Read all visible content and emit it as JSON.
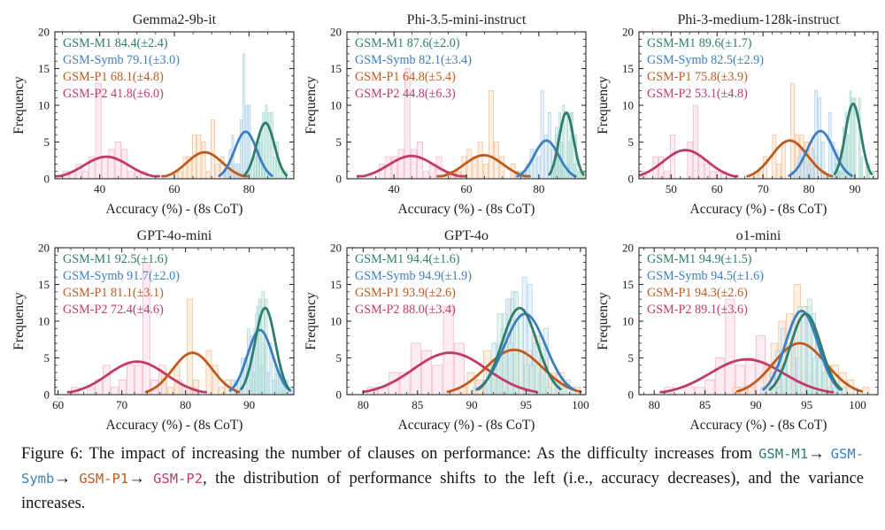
{
  "page": {
    "background": "#ffffff"
  },
  "colors": {
    "m1": {
      "line": "#2e7d6e",
      "fill": "#d8f0ea",
      "edge": "#9fd6c9"
    },
    "symb": {
      "line": "#3c7fc0",
      "fill": "#d8e9f7",
      "edge": "#a5cdea"
    },
    "p1": {
      "line": "#bf5a1d",
      "fill": "#fbe3cb",
      "edge": "#f0bd92"
    },
    "p2": {
      "line": "#c23a68",
      "fill": "#fcdde8",
      "edge": "#f3b3c9"
    }
  },
  "axis": {
    "ylabel": "Frequency",
    "xlabel": "Accuracy (%) - (8s CoT)",
    "ylim": [
      0,
      20
    ],
    "yticks": [
      0,
      5,
      10,
      15,
      20
    ],
    "yminor_step": 1,
    "grid": false,
    "legend_position": "upper-left-inside"
  },
  "chart_data": [
    {
      "type": "histogram+kde",
      "title": "Gemma2-9b-it",
      "xlim": [
        28,
        92
      ],
      "xticks": [
        40,
        60,
        80
      ],
      "xminor_step": 5,
      "series": [
        {
          "key": "p2",
          "label": "GSM-P2",
          "legend": "GSM-P2 41.8(±6.0)",
          "mean": 41.8,
          "std": 6.0,
          "curve_peak": 3.0,
          "hist_peak": 13
        },
        {
          "key": "p1",
          "label": "GSM-P1",
          "legend": "GSM-P1 68.1(±4.8)",
          "mean": 68.1,
          "std": 4.8,
          "curve_peak": 3.6,
          "hist_peak": 8
        },
        {
          "key": "symb",
          "label": "GSM-Symb",
          "legend": "GSM-Symb 79.1(±3.0)",
          "mean": 79.1,
          "std": 3.0,
          "curve_peak": 6.4,
          "hist_peak": 17
        },
        {
          "key": "m1",
          "label": "GSM-M1",
          "legend": "GSM-M1 84.4(±2.4)",
          "mean": 84.4,
          "std": 2.4,
          "curve_peak": 7.6,
          "hist_peak": 10
        }
      ]
    },
    {
      "type": "histogram+kde",
      "title": "Phi-3.5-mini-instruct",
      "xlim": [
        27,
        93
      ],
      "xticks": [
        40,
        60,
        80
      ],
      "xminor_step": 5,
      "series": [
        {
          "key": "p2",
          "label": "GSM-P2",
          "legend": "GSM-P2 44.8(±6.3)",
          "mean": 44.8,
          "std": 6.3,
          "curve_peak": 3.1,
          "hist_peak": 15
        },
        {
          "key": "p1",
          "label": "GSM-P1",
          "legend": "GSM-P1 64.8(±5.4)",
          "mean": 64.8,
          "std": 5.4,
          "curve_peak": 3.2,
          "hist_peak": 12
        },
        {
          "key": "symb",
          "label": "GSM-Symb",
          "legend": "GSM-Symb 82.1(±3.4)",
          "mean": 82.1,
          "std": 3.4,
          "curve_peak": 5.2,
          "hist_peak": 12
        },
        {
          "key": "m1",
          "label": "GSM-M1",
          "legend": "GSM-M1 87.6(±2.0)",
          "mean": 87.6,
          "std": 2.0,
          "curve_peak": 9.0,
          "hist_peak": 10
        }
      ]
    },
    {
      "type": "histogram+kde",
      "title": "Phi-3-medium-128k-instruct",
      "xlim": [
        43,
        95
      ],
      "xticks": [
        50,
        60,
        70,
        80,
        90
      ],
      "xminor_step": 2,
      "series": [
        {
          "key": "p2",
          "label": "GSM-P2",
          "legend": "GSM-P2 53.1(±4.8)",
          "mean": 53.1,
          "std": 4.8,
          "curve_peak": 3.9,
          "hist_peak": 10
        },
        {
          "key": "p1",
          "label": "GSM-P1",
          "legend": "GSM-P1 75.8(±3.9)",
          "mean": 75.8,
          "std": 3.9,
          "curve_peak": 5.2,
          "hist_peak": 13
        },
        {
          "key": "symb",
          "label": "GSM-Symb",
          "legend": "GSM-Symb 82.5(±2.9)",
          "mean": 82.5,
          "std": 2.9,
          "curve_peak": 6.5,
          "hist_peak": 12
        },
        {
          "key": "m1",
          "label": "GSM-M1",
          "legend": "GSM-M1 89.6(±1.7)",
          "mean": 89.6,
          "std": 1.7,
          "curve_peak": 10.2,
          "hist_peak": 12
        }
      ]
    },
    {
      "type": "histogram+kde",
      "title": "GPT-4o-mini",
      "xlim": [
        59.5,
        97
      ],
      "xticks": [
        60,
        70,
        80,
        90
      ],
      "xminor_step": 2,
      "series": [
        {
          "key": "p2",
          "label": "GSM-P2",
          "legend": "GSM-P2 72.4(±4.6)",
          "mean": 72.4,
          "std": 4.6,
          "curve_peak": 4.5,
          "hist_peak": 18
        },
        {
          "key": "p1",
          "label": "GSM-P1",
          "legend": "GSM-P1 81.1(±3.1)",
          "mean": 81.1,
          "std": 3.1,
          "curve_peak": 5.7,
          "hist_peak": 13
        },
        {
          "key": "symb",
          "label": "GSM-Symb",
          "legend": "GSM-Symb 91.7(±2.0)",
          "mean": 91.7,
          "std": 2.0,
          "curve_peak": 8.8,
          "hist_peak": 12
        },
        {
          "key": "m1",
          "label": "GSM-M1",
          "legend": "GSM-M1 92.5(±1.6)",
          "mean": 92.5,
          "std": 1.6,
          "curve_peak": 11.8,
          "hist_peak": 14
        }
      ]
    },
    {
      "type": "histogram+kde",
      "title": "GPT-4o",
      "xlim": [
        78.5,
        100.5
      ],
      "xticks": [
        80,
        85,
        90,
        95,
        100
      ],
      "xminor_step": 1,
      "series": [
        {
          "key": "p2",
          "label": "GSM-P2",
          "legend": "GSM-P2 88.0(±3.4)",
          "mean": 88.0,
          "std": 3.4,
          "curve_peak": 5.7,
          "hist_peak": 12
        },
        {
          "key": "p1",
          "label": "GSM-P1",
          "legend": "GSM-P1 93.9(±2.6)",
          "mean": 93.9,
          "std": 2.6,
          "curve_peak": 6.1,
          "hist_peak": 13
        },
        {
          "key": "symb",
          "label": "GSM-Symb",
          "legend": "GSM-Symb 94.9(±1.9)",
          "mean": 94.9,
          "std": 1.9,
          "curve_peak": 11.0,
          "hist_peak": 16
        },
        {
          "key": "m1",
          "label": "GSM-M1",
          "legend": "GSM-M1 94.4(±1.6)",
          "mean": 94.4,
          "std": 1.6,
          "curve_peak": 11.8,
          "hist_peak": 14
        }
      ]
    },
    {
      "type": "histogram+kde",
      "title": "o1-mini",
      "xlim": [
        78.5,
        102
      ],
      "xticks": [
        80,
        85,
        90,
        95,
        100
      ],
      "xminor_step": 1,
      "series": [
        {
          "key": "p2",
          "label": "GSM-P2",
          "legend": "GSM-P2 89.1(±3.6)",
          "mean": 89.1,
          "std": 3.6,
          "curve_peak": 4.8,
          "hist_peak": 13
        },
        {
          "key": "p1",
          "label": "GSM-P1",
          "legend": "GSM-P1 94.3(±2.6)",
          "mean": 94.3,
          "std": 2.6,
          "curve_peak": 7.0,
          "hist_peak": 15
        },
        {
          "key": "symb",
          "label": "GSM-Symb",
          "legend": "GSM-Symb 94.5(±1.6)",
          "mean": 94.5,
          "std": 1.6,
          "curve_peak": 11.4,
          "hist_peak": 12
        },
        {
          "key": "m1",
          "label": "GSM-M1",
          "legend": "GSM-M1 94.9(±1.5)",
          "mean": 94.9,
          "std": 1.5,
          "curve_peak": 11.0,
          "hist_peak": 13
        }
      ]
    }
  ],
  "caption": {
    "segments": [
      {
        "style": "plain",
        "text": "Figure 6: The impact of increasing the number of clauses on performance: As the difficulty increases from "
      },
      {
        "style": "m1",
        "text": "GSM-M1"
      },
      {
        "style": "plain",
        "text": "→ "
      },
      {
        "style": "symb",
        "text": "GSM-Symb"
      },
      {
        "style": "plain",
        "text": "→ "
      },
      {
        "style": "p1",
        "text": "GSM-P1"
      },
      {
        "style": "plain",
        "text": "→ "
      },
      {
        "style": "p2",
        "text": "GSM-P2"
      },
      {
        "style": "plain",
        "text": ", the distribution of performance shifts to the left (i.e., accuracy decreases), and the variance increases."
      }
    ]
  }
}
